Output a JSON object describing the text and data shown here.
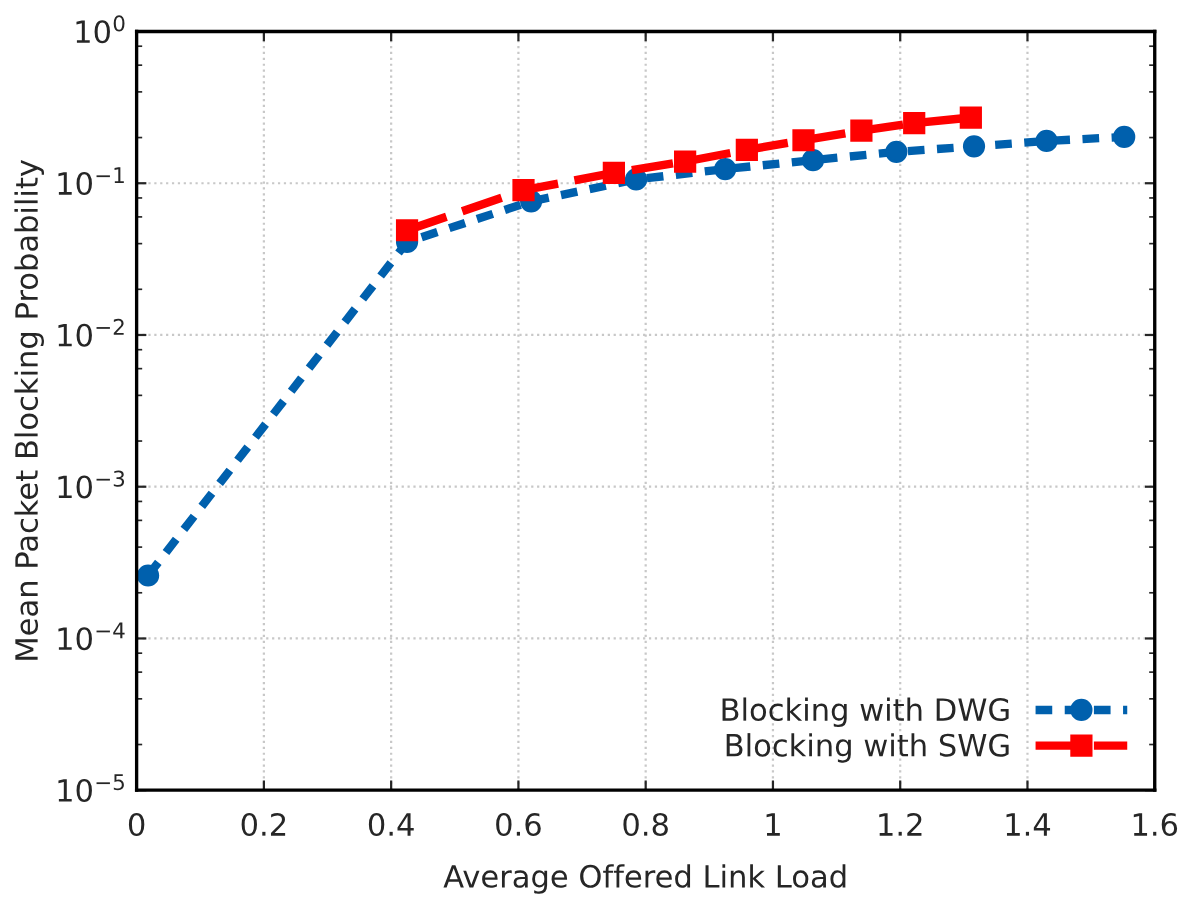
{
  "chart_data": {
    "type": "line",
    "xlabel": "Average Offered Link Load",
    "ylabel": "Mean Packet Blocking Probability",
    "log": "y",
    "grid": true,
    "legend": "bottom right",
    "xlim": [
      0,
      1.6
    ],
    "xticks": [
      0,
      0.2,
      0.4,
      0.6,
      0.8,
      1,
      1.2,
      1.4,
      1.6
    ],
    "ylim": [
      1e-05,
      1
    ],
    "yticks": [
      {
        "value": 1e-05,
        "label": "10$^{−5}$"
      },
      {
        "value": 0.0001,
        "label": "10$^{−4}$"
      },
      {
        "value": 0.001,
        "label": "10$^{−3}$"
      },
      {
        "value": 0.01,
        "label": "10$^{−2}$"
      },
      {
        "value": 0.1,
        "label": "10$^{−1}$"
      },
      {
        "value": 1,
        "label": "10$^{0}$"
      }
    ],
    "series": [
      {
        "name": "Blocking with DWG",
        "color": "#0060ad",
        "marker": "circle",
        "line_style": "dotted",
        "x": [
          0.018,
          0.425,
          0.62,
          0.785,
          0.925,
          1.063,
          1.194,
          1.316,
          1.43,
          1.552
        ],
        "values": [
          0.00026,
          0.041,
          0.076,
          0.106,
          0.124,
          0.142,
          0.161,
          0.175,
          0.19,
          0.202
        ]
      },
      {
        "name": "Blocking with SWG",
        "color": "#ff0000",
        "marker": "square",
        "line_style": "dashed",
        "x": [
          0.425,
          0.608,
          0.75,
          0.862,
          0.959,
          1.048,
          1.139,
          1.222,
          1.311
        ],
        "values": [
          0.049,
          0.09,
          0.117,
          0.139,
          0.166,
          0.192,
          0.222,
          0.249,
          0.271
        ]
      }
    ]
  }
}
